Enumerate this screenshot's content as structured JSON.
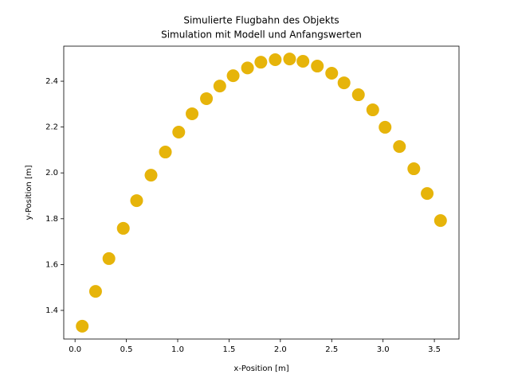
{
  "chart_data": {
    "type": "scatter",
    "title": "Simulierte Flugbahn des Objekts",
    "subtitle": "Simulation mit Modell und Anfangswerten",
    "x_label": "x-Position [m]",
    "y_label": "y-Position [m]",
    "color": "#e6b40a",
    "xlim": [
      -0.11,
      3.74
    ],
    "ylim": [
      1.275,
      2.553
    ],
    "xticks": [
      {
        "value": 0,
        "label": "0.0"
      },
      0.5,
      {
        "value": 1,
        "label": "1.0"
      },
      1.5,
      {
        "value": 2,
        "label": "2.0"
      },
      2.5,
      {
        "value": 3,
        "label": "3.0"
      },
      3.5
    ],
    "yticks": [
      1.4,
      1.6,
      1.8,
      {
        "value": 2,
        "label": "2.0"
      },
      2.2,
      2.4
    ],
    "x": [
      0.07,
      0.2,
      0.33,
      0.47,
      0.6,
      0.74,
      0.88,
      1.01,
      1.14,
      1.28,
      1.41,
      1.54,
      1.68,
      1.81,
      1.95,
      2.09,
      2.22,
      2.36,
      2.5,
      2.62,
      2.76,
      2.9,
      3.02,
      3.16,
      3.3,
      3.43,
      3.56
    ],
    "values": [
      1.331,
      1.483,
      1.626,
      1.758,
      1.879,
      1.99,
      2.091,
      2.178,
      2.258,
      2.324,
      2.379,
      2.424,
      2.458,
      2.483,
      2.494,
      2.497,
      2.487,
      2.466,
      2.435,
      2.393,
      2.341,
      2.275,
      2.199,
      2.115,
      2.018,
      1.91,
      1.792
    ]
  }
}
